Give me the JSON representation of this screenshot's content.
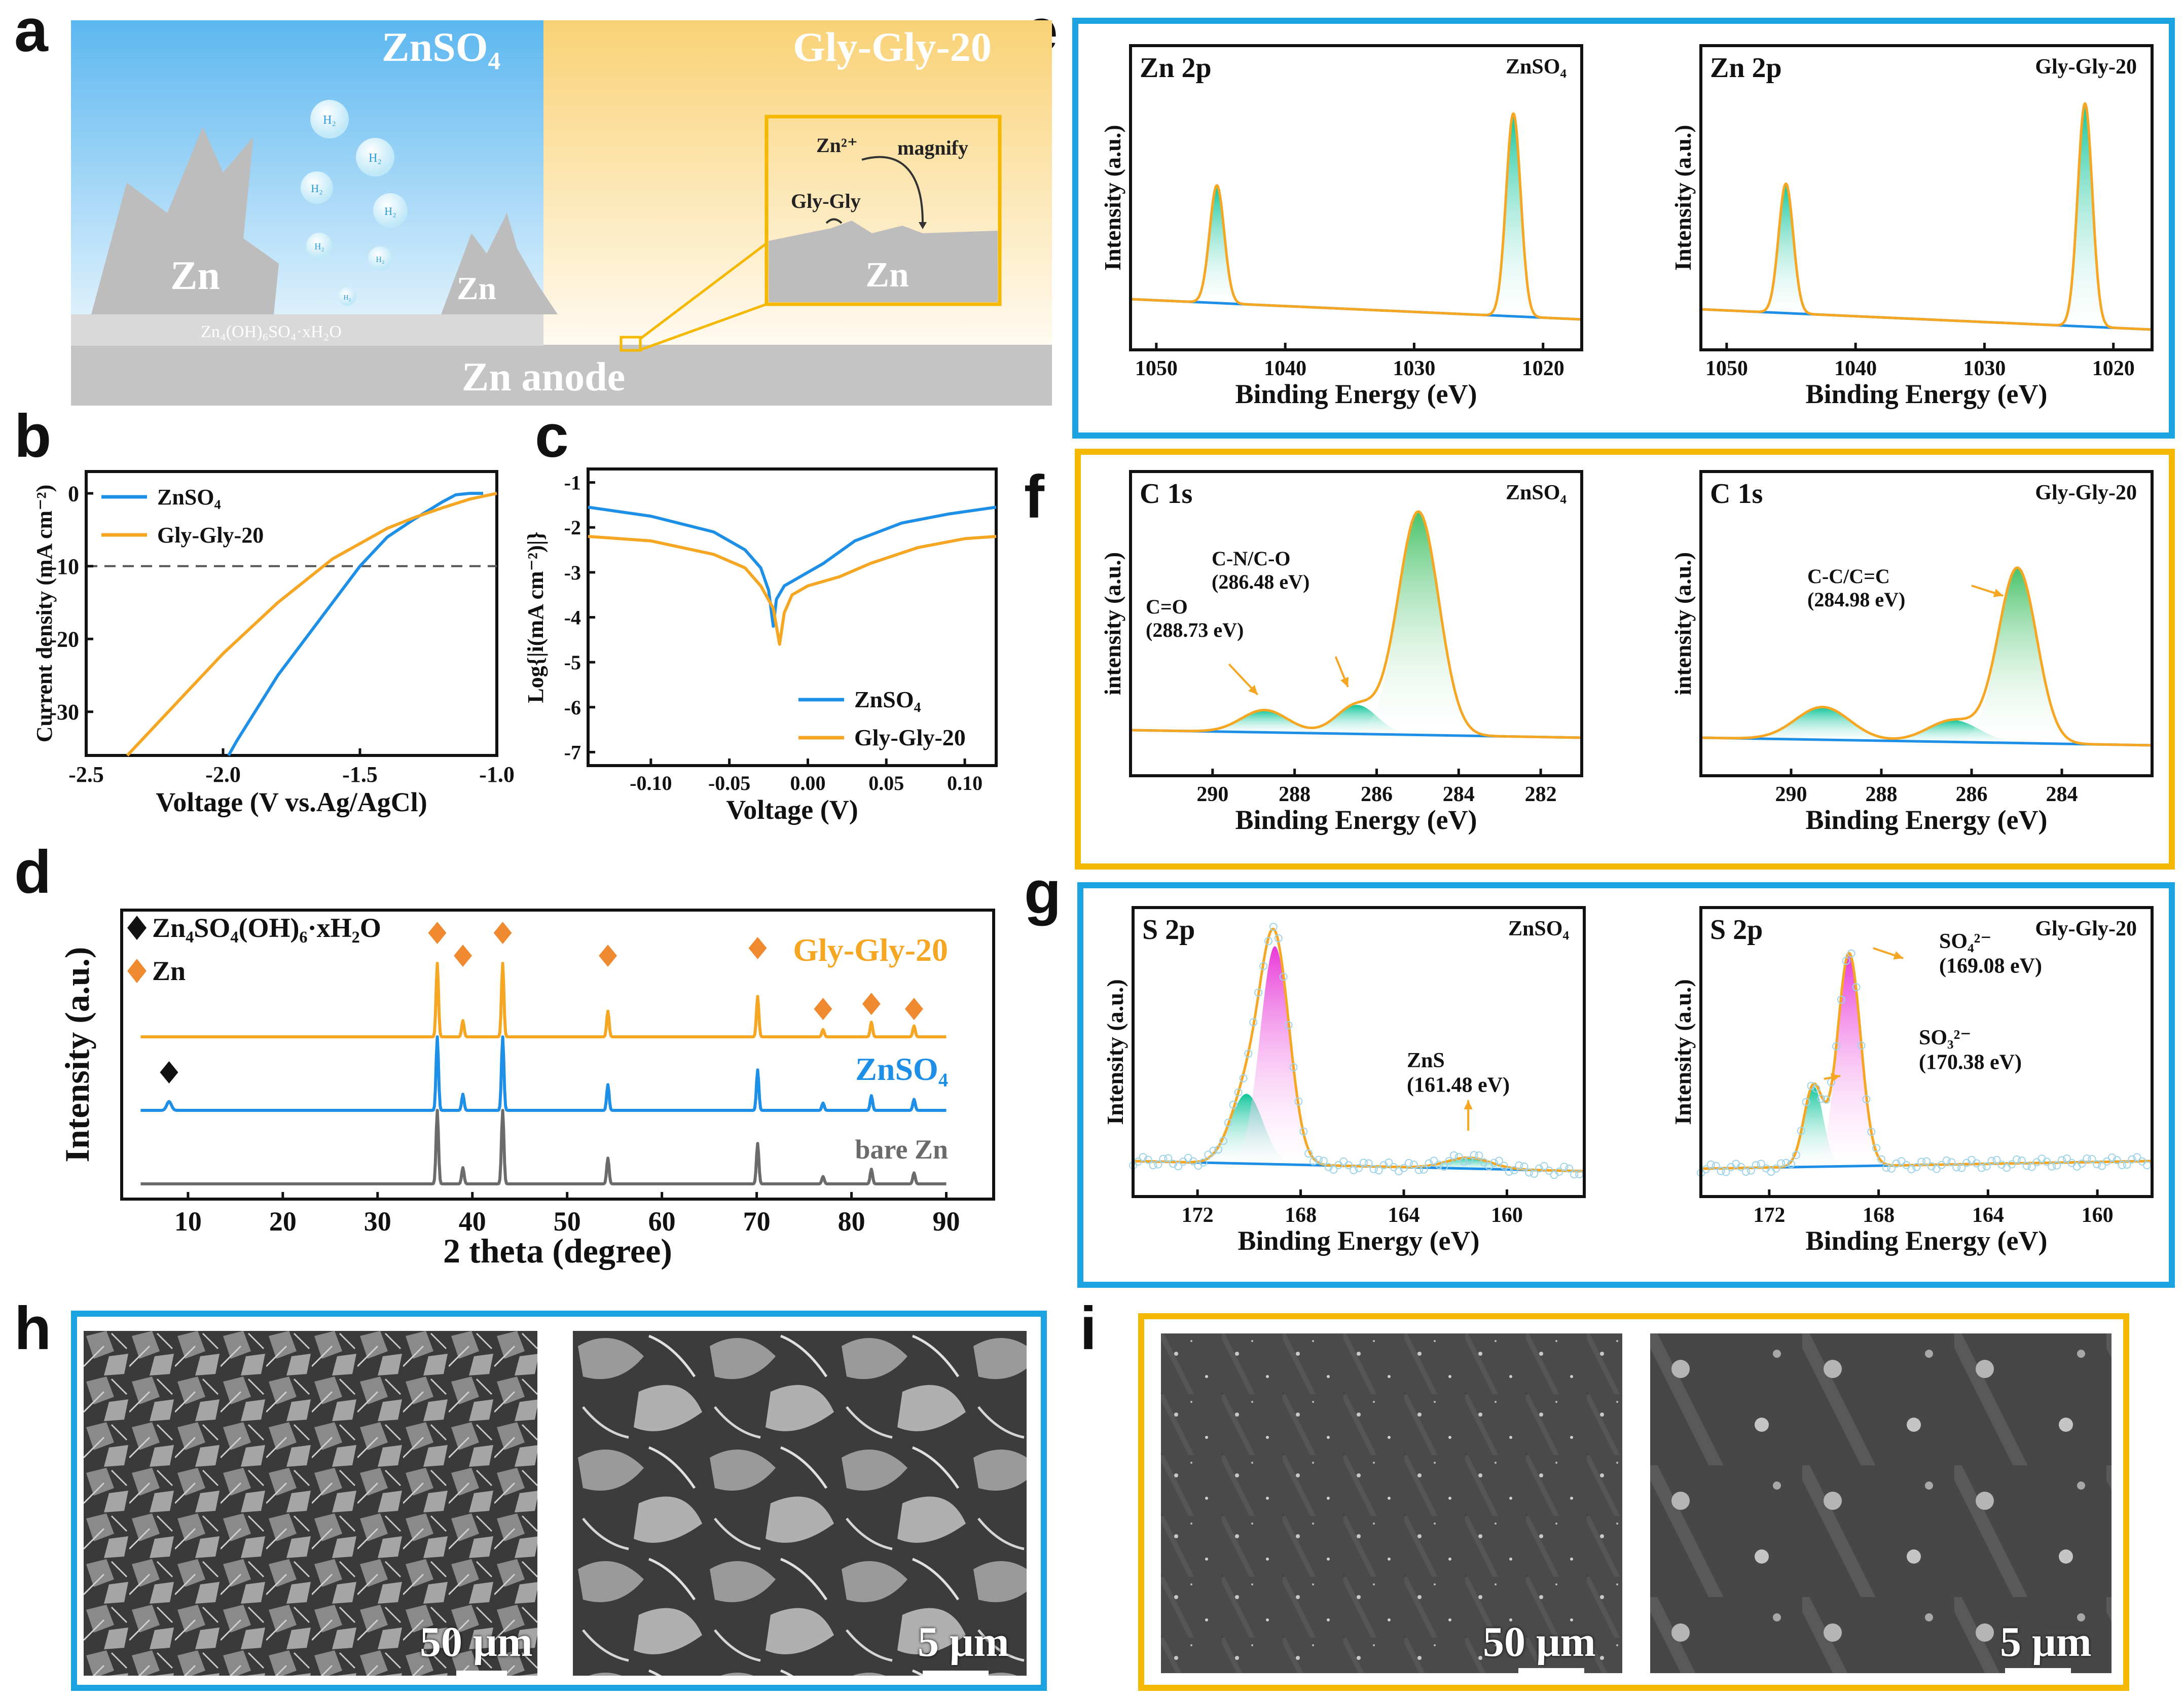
{
  "panel_letters": {
    "a": "a",
    "b": "b",
    "c": "c",
    "d": "d",
    "e": "e",
    "f": "f",
    "g": "g",
    "h": "h",
    "i": "i"
  },
  "colors": {
    "blue": "#1e8fe6",
    "orange": "#f5a623",
    "gold": "#f5b800",
    "frame_blue": "#1aa3e0",
    "green": "#2ecf8f",
    "pink": "#e838d8",
    "gray": "#6b6b6b",
    "black": "#111111"
  },
  "panel_a": {
    "left_label": "ZnSO₄",
    "right_label": "Gly-Gly-20",
    "zn_label": "Zn",
    "passivation_layer": "Zn₄(OH)₆SO₄·xH₂O",
    "anode_label": "Zn anode",
    "bubble_label": "H₂",
    "inset": {
      "zn_ion": "Zn²⁺",
      "magnify": "magnify",
      "glygly": "Gly-Gly",
      "zn": "Zn"
    }
  },
  "chart_data": [
    {
      "id": "b",
      "type": "line",
      "xlabel": "Voltage (V vs.Ag/AgCl)",
      "ylabel": "Current density (mA cm⁻²)",
      "xlim": [
        -2.5,
        -1.0
      ],
      "ylim": [
        -36,
        3
      ],
      "xticks": [
        "-2.5",
        "-2.0",
        "-1.5",
        "-1.0"
      ],
      "yticks": [
        "0",
        "-10",
        "-20",
        "-30"
      ],
      "reference_line_y": -10,
      "series": [
        {
          "name": "ZnSO₄",
          "color": "#1e8fe6",
          "x": [
            -1.98,
            -1.95,
            -1.9,
            -1.85,
            -1.8,
            -1.7,
            -1.6,
            -1.5,
            -1.4,
            -1.3,
            -1.2,
            -1.15,
            -1.1,
            -1.05
          ],
          "y": [
            -36,
            -34,
            -31,
            -28,
            -25,
            -20,
            -15,
            -10,
            -6,
            -3.5,
            -1.2,
            -0.2,
            0,
            0
          ]
        },
        {
          "name": "Gly-Gly-20",
          "color": "#f5a623",
          "x": [
            -2.35,
            -2.2,
            -2.0,
            -1.8,
            -1.6,
            -1.4,
            -1.3,
            -1.2,
            -1.1,
            -1.0
          ],
          "y": [
            -36,
            -30,
            -22,
            -15,
            -9,
            -4.8,
            -3.3,
            -2,
            -0.8,
            0
          ]
        }
      ]
    },
    {
      "id": "c",
      "type": "line",
      "xlabel": "Voltage (V)",
      "ylabel": "Log{|i(mA cm⁻²)|}",
      "xlim": [
        -0.14,
        0.12
      ],
      "ylim": [
        -7.3,
        -0.7
      ],
      "xticks": [
        "-0.10",
        "-0.05",
        "0.00",
        "0.05",
        "0.10"
      ],
      "yticks": [
        "-1",
        "-2",
        "-3",
        "-4",
        "-5",
        "-6",
        "-7"
      ],
      "series": [
        {
          "name": "ZnSO₄",
          "color": "#1e8fe6",
          "x": [
            -0.14,
            -0.1,
            -0.06,
            -0.04,
            -0.03,
            -0.025,
            -0.022,
            -0.02,
            -0.015,
            -0.005,
            0.01,
            0.03,
            0.06,
            0.09,
            0.12
          ],
          "y": [
            -1.55,
            -1.75,
            -2.1,
            -2.5,
            -2.9,
            -3.4,
            -4.2,
            -3.6,
            -3.3,
            -3.1,
            -2.8,
            -2.3,
            -1.9,
            -1.7,
            -1.55
          ]
        },
        {
          "name": "Gly-Gly-20",
          "color": "#f5a623",
          "x": [
            -0.14,
            -0.1,
            -0.06,
            -0.04,
            -0.03,
            -0.022,
            -0.018,
            -0.015,
            -0.01,
            0.0,
            0.02,
            0.04,
            0.07,
            0.1,
            0.12
          ],
          "y": [
            -2.2,
            -2.3,
            -2.6,
            -2.9,
            -3.3,
            -3.8,
            -4.6,
            -3.9,
            -3.5,
            -3.3,
            -3.1,
            -2.8,
            -2.45,
            -2.25,
            -2.2
          ]
        }
      ]
    },
    {
      "id": "d",
      "type": "line",
      "xlabel": "2 theta (degree)",
      "ylabel": "Intensity (a.u.)",
      "xlim": [
        3,
        95
      ],
      "xticks": [
        "10",
        "20",
        "30",
        "40",
        "50",
        "60",
        "70",
        "80",
        "90"
      ],
      "peaks_x": [
        36.3,
        39.0,
        43.2,
        54.3,
        70.1,
        77.0,
        82.1,
        86.6
      ],
      "series": [
        {
          "name": "Gly-Gly-20",
          "color": "#f5a623",
          "peak_heights": [
            1.0,
            0.22,
            1.0,
            0.35,
            0.55,
            0.1,
            0.2,
            0.15
          ],
          "extra_peak_x": null
        },
        {
          "name": "ZnSO₄",
          "color": "#1e8fe6",
          "peak_heights": [
            1.0,
            0.22,
            1.0,
            0.35,
            0.55,
            0.1,
            0.2,
            0.15
          ],
          "extra_peak_x": 8.0
        },
        {
          "name": "bare Zn",
          "color": "#6b6b6b",
          "peak_heights": [
            1.0,
            0.22,
            1.0,
            0.35,
            0.55,
            0.1,
            0.2,
            0.15
          ],
          "extra_peak_x": null
        }
      ],
      "legend": [
        {
          "marker": "black-diamond",
          "label": "Zn₄SO₄(OH)₆·xH₂O"
        },
        {
          "marker": "orange-diamond",
          "label": "Zn"
        }
      ],
      "curve_labels": [
        "Gly-Gly-20",
        "ZnSO₄",
        "bare Zn"
      ],
      "zn_marker_x": [
        36.3,
        39.0,
        43.2,
        54.3,
        70.1,
        77.0,
        82.1,
        86.6
      ],
      "byproduct_marker_x": [
        8.0
      ]
    },
    {
      "id": "e1",
      "type": "line",
      "title": "Zn 2p",
      "sample": "ZnSO₄",
      "xlabel": "Binding Energy (eV)",
      "ylabel": "Intensity (a.u.)",
      "xlim": [
        1052,
        1017
      ],
      "xticks": [
        "1050",
        "1040",
        "1030",
        "1020"
      ],
      "peaks": [
        {
          "center": 1045.3,
          "height": 0.58,
          "width": 0.8
        },
        {
          "center": 1022.3,
          "height": 1.0,
          "width": 0.8
        }
      ]
    },
    {
      "id": "e2",
      "type": "line",
      "title": "Zn 2p",
      "sample": "Gly-Gly-20",
      "xlabel": "Binding Energy (eV)",
      "ylabel": "Intensity (a.u.)",
      "xlim": [
        1052,
        1017
      ],
      "xticks": [
        "1050",
        "1040",
        "1030",
        "1020"
      ],
      "peaks": [
        {
          "center": 1045.4,
          "height": 0.58,
          "width": 0.8
        },
        {
          "center": 1022.2,
          "height": 1.0,
          "width": 0.8
        }
      ]
    },
    {
      "id": "f1",
      "type": "line",
      "title": "C 1s",
      "sample": "ZnSO₄",
      "xlabel": "Binding Energy (eV)",
      "ylabel": "intensity (a.u.)",
      "xlim": [
        292,
        281
      ],
      "xticks": [
        "290",
        "288",
        "286",
        "284",
        "282"
      ],
      "peaks": [
        {
          "center": 288.73,
          "height": 0.1,
          "width": 0.8,
          "label": "C=O\n(288.73 eV)"
        },
        {
          "center": 286.48,
          "height": 0.13,
          "width": 0.7,
          "label": "C-N/C-O\n(286.48 eV)"
        },
        {
          "center": 284.98,
          "height": 1.0,
          "width": 0.7
        }
      ]
    },
    {
      "id": "f2",
      "type": "line",
      "title": "C 1s",
      "sample": "Gly-Gly-20",
      "xlabel": "Binding Energy (eV)",
      "ylabel": "intensity (a.u.)",
      "xlim": [
        292,
        282
      ],
      "xticks": [
        "290",
        "288",
        "286",
        "284"
      ],
      "peaks": [
        {
          "center": 289.3,
          "height": 0.15,
          "width": 0.85
        },
        {
          "center": 286.4,
          "height": 0.1,
          "width": 0.8
        },
        {
          "center": 284.98,
          "height": 0.8,
          "width": 0.6,
          "label": "C-C/C=C\n(284.98 eV)"
        }
      ]
    },
    {
      "id": "g1",
      "type": "line",
      "title": "S 2p",
      "sample": "ZnSO₄",
      "xlabel": "Binding Energy (eV)",
      "ylabel": "Intensity (a.u.)",
      "xlim": [
        174.5,
        157
      ],
      "xticks": [
        "172",
        "168",
        "164",
        "160"
      ],
      "peaks": [
        {
          "center": 170.1,
          "height": 0.32,
          "width": 0.9,
          "fill": "green"
        },
        {
          "center": 169.0,
          "height": 1.0,
          "width": 0.8,
          "fill": "pink"
        },
        {
          "center": 161.48,
          "height": 0.05,
          "width": 1.2,
          "fill": "green",
          "label": "ZnS\n(161.48 eV)"
        }
      ]
    },
    {
      "id": "g2",
      "type": "line",
      "title": "S 2p",
      "sample": "Gly-Gly-20",
      "xlabel": "Binding Energy (eV)",
      "ylabel": "Intensity (a.u.)",
      "xlim": [
        174.5,
        158
      ],
      "xticks": [
        "172",
        "168",
        "164",
        "160"
      ],
      "peaks": [
        {
          "center": 170.38,
          "height": 0.38,
          "width": 0.5,
          "fill": "green",
          "label": "SO₃²⁻\n(170.38 eV)"
        },
        {
          "center": 169.08,
          "height": 1.0,
          "width": 0.6,
          "fill": "pink",
          "label": "SO₄²⁻\n(169.08 eV)"
        }
      ]
    }
  ],
  "sem": {
    "h_left_scale": "50 μm",
    "h_right_scale": "5 μm",
    "i_left_scale": "50 μm",
    "i_right_scale": "5 μm"
  }
}
